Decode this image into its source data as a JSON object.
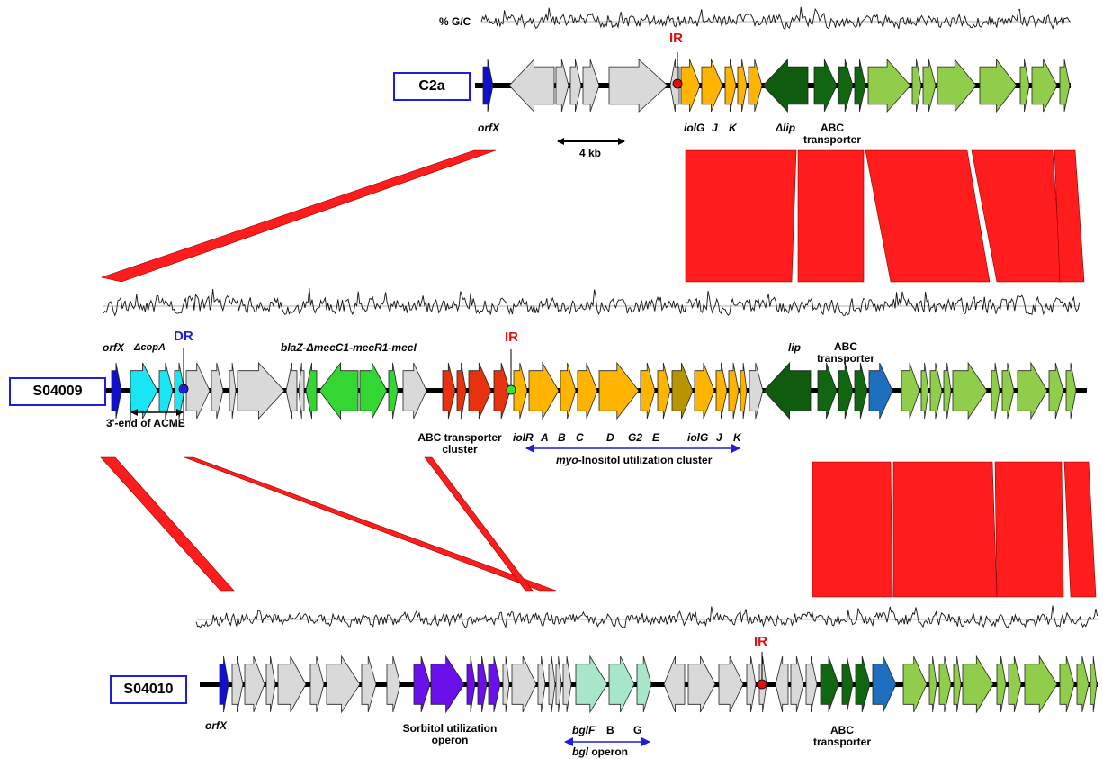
{
  "gc_label": "% G/C",
  "scale_label": "4 kb",
  "genomes": [
    {
      "id": "c2a",
      "name": "C2a"
    },
    {
      "id": "s04009",
      "name": "S04009"
    },
    {
      "id": "s04010",
      "name": "S04010"
    }
  ],
  "colors": {
    "hypothetical": "#d9d9d9",
    "orfx": "#1010c8",
    "copA": "#19e6f2",
    "bla_mec": "#33d633",
    "abc_red": "#e8320f",
    "iol": "#ffb400",
    "iol_dark": "#b89400",
    "lip": "#0f5c0f",
    "abc_dark": "#116611",
    "abc_blue": "#1e6fbf",
    "light_green": "#8fcd4a",
    "sorbitol": "#6a10ea",
    "bgl": "#a8e6c9",
    "homology": "#ff1c1c",
    "ir_marker": "#e11010",
    "dr_marker": "#1f1fd8",
    "ir_marker_s04009": "#33e633"
  },
  "c2a": {
    "ir": "IR",
    "orfx": "orfX",
    "iolg": "iolG",
    "j": "J",
    "k": "K",
    "dlip": "Δlip",
    "abc": "ABC\ntransporter"
  },
  "s04009": {
    "orfx": "orfX",
    "dcopa": "ΔcopA",
    "dr": "DR",
    "bla": "blaZ-ΔmecC1-mecR1-mecI",
    "ir": "IR",
    "lip": "lip",
    "abc": "ABC\ntransporter",
    "acme": "3'-end of ACME",
    "abc_cluster": "ABC transporter\ncluster",
    "iol_letters": [
      "iolR",
      "A",
      "B",
      "C",
      "D",
      "G2",
      "E",
      "iolG",
      "J",
      "K"
    ],
    "myo_prefix": "myo",
    "myo_rest": "-Inositol utilization cluster"
  },
  "s04010": {
    "orfx": "orfX",
    "ir": "IR",
    "sorbitol": "Sorbitol utilization\noperon",
    "bglf": "bglF",
    "b": "B",
    "g": "G",
    "bgl_prefix": "bgl",
    "bgl_rest": " operon",
    "abc": "ABC\ntransporter"
  }
}
